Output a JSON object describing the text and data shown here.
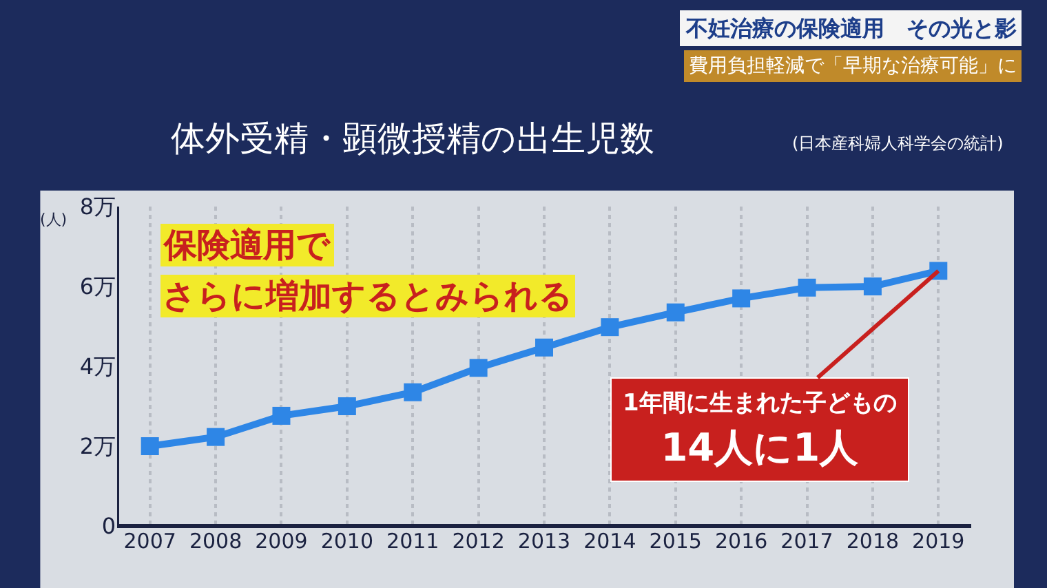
{
  "chart_data": {
    "type": "line",
    "title": "体外受精・顕微授精の出生児数",
    "subtitle": "(日本産科婦人科学会の統計)",
    "ylabel": "(人)",
    "categories": [
      "2007",
      "2008",
      "2009",
      "2010",
      "2011",
      "2012",
      "2013",
      "2014",
      "2015",
      "2016",
      "2017",
      "2018",
      "2019"
    ],
    "series": [
      {
        "color": "#2e86e6",
        "values": [
          2.0,
          2.23,
          2.76,
          3.0,
          3.35,
          3.96,
          4.47,
          4.98,
          5.35,
          5.7,
          5.97,
          6.0,
          6.39
        ]
      }
    ],
    "ylim": [
      0,
      8
    ],
    "yticks": [
      0,
      {
        "value": 2,
        "label": "2万"
      },
      {
        "value": 4,
        "label": "4万"
      },
      {
        "value": 6,
        "label": "6万"
      },
      {
        "value": 8,
        "label": "8万"
      }
    ],
    "grid": "x",
    "marker": "square",
    "line_style": "solid",
    "legend": false,
    "annotations": [
      "不妊治療の保険適用　その光と影",
      "費用負担軽減で「早期な治療可能」に",
      "保険適用で",
      "さらに増加するとみられる",
      {
        "text": "1年間に生まれた子どもの\n14人に1人",
        "x": "2019",
        "y": 6.39
      }
    ]
  }
}
